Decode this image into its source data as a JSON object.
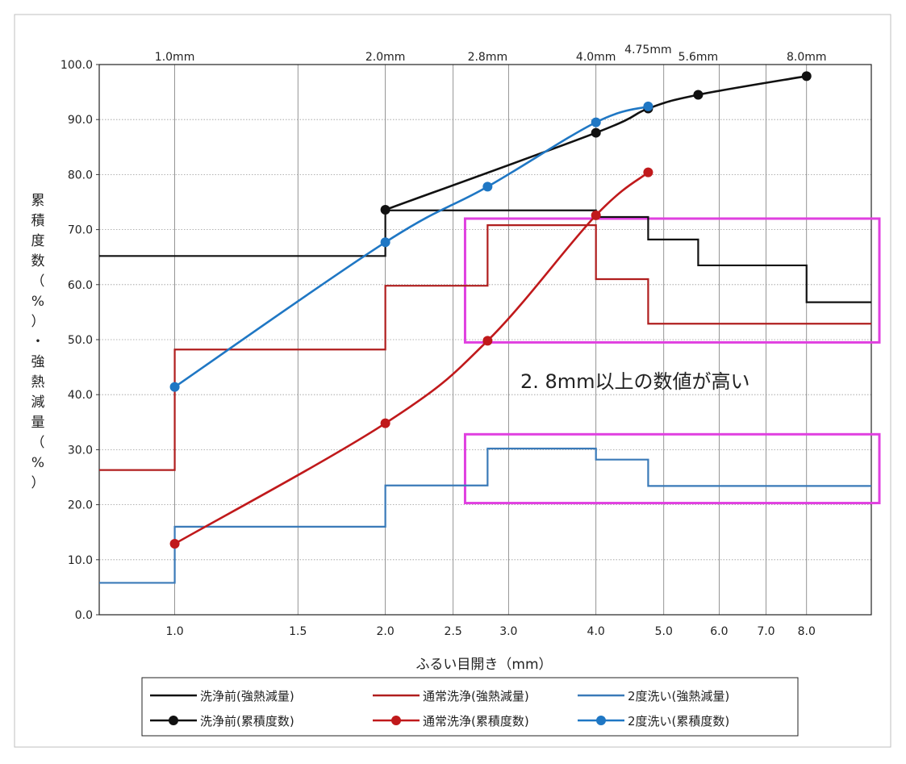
{
  "chart_data": {
    "type": "line",
    "title": "",
    "xlabel": "ふるい目開き（mm）",
    "ylabel": "累積度数（%）・強熱減量（%）",
    "x_scale": "log",
    "xlim": [
      0.78,
      9.9
    ],
    "ylim": [
      0,
      100
    ],
    "x_tick_labels": [
      "1.0",
      "1.5",
      "2.0",
      "2.5",
      "3.0",
      "4.0",
      "5.0",
      "6.0",
      "7.0",
      "8.0"
    ],
    "x_tick_values": [
      1.0,
      1.5,
      2.0,
      2.5,
      3.0,
      4.0,
      5.0,
      6.0,
      7.0,
      8.0
    ],
    "y_tick_labels": [
      "0.0",
      "10.0",
      "20.0",
      "30.0",
      "40.0",
      "50.0",
      "60.0",
      "70.0",
      "80.0",
      "90.0",
      "100.0"
    ],
    "y_tick_values": [
      0,
      10,
      20,
      30,
      40,
      50,
      60,
      70,
      80,
      90,
      100
    ],
    "top_axis_labels": [
      "1.0mm",
      "2.0mm",
      "2.8mm",
      "4.0mm",
      "4.75mm",
      "5.6mm",
      "8.0mm"
    ],
    "top_axis_values": [
      1.0,
      2.0,
      2.8,
      4.0,
      4.75,
      5.6,
      8.0
    ],
    "grid": true,
    "legend_position": "bottom",
    "series": [
      {
        "name": "洗浄前(強熱減量)",
        "kind": "step",
        "color": "#111111",
        "x": [
          0.78,
          2.0,
          4.75,
          5.6,
          8.0,
          9.9
        ],
        "y": [
          65.2,
          73.5,
          68.2,
          63.5,
          56.8,
          56.8
        ],
        "step_edges": [
          0.78,
          2.0,
          4.0,
          4.75,
          5.6,
          8.0,
          9.9
        ],
        "step_values": [
          65.2,
          73.5,
          72.3,
          68.2,
          63.5,
          56.8
        ]
      },
      {
        "name": "通常洗浄(強熱減量)",
        "kind": "step",
        "color": "#b01e1e",
        "step_edges": [
          0.78,
          1.0,
          2.0,
          2.8,
          4.0,
          4.75,
          9.9
        ],
        "step_values": [
          26.3,
          48.2,
          59.8,
          70.8,
          61.0,
          52.9
        ]
      },
      {
        "name": "2度洗い(強熱減量)",
        "kind": "step",
        "color": "#3a7ab8",
        "step_edges": [
          0.78,
          1.0,
          2.0,
          2.8,
          4.0,
          4.75,
          9.9
        ],
        "step_values": [
          5.8,
          16.0,
          23.5,
          30.2,
          28.2,
          23.4
        ]
      },
      {
        "name": "洗浄前(累積度数)",
        "kind": "line-marker",
        "color": "#111111",
        "x": [
          2.0,
          4.0,
          4.75,
          5.6,
          8.0
        ],
        "y": [
          73.6,
          87.6,
          92.0,
          94.5,
          97.9
        ]
      },
      {
        "name": "通常洗浄(累積度数)",
        "kind": "line-marker",
        "color": "#c0191b",
        "x": [
          1.0,
          2.0,
          2.8,
          4.0,
          4.75
        ],
        "y": [
          12.9,
          34.8,
          49.8,
          72.6,
          80.4
        ]
      },
      {
        "name": "2度洗い(累積度数)",
        "kind": "line-marker",
        "color": "#1f77c4",
        "x": [
          1.0,
          2.0,
          2.8,
          4.0,
          4.75
        ],
        "y": [
          41.4,
          67.7,
          77.8,
          89.5,
          92.4
        ]
      }
    ],
    "annotations": [
      {
        "text": "2. 8mm以上の数値が高い"
      }
    ],
    "highlight_boxes": [
      {
        "x_range": [
          2.6,
          9.9
        ],
        "y_range": [
          49.5,
          72.0
        ],
        "color": "#e040e0"
      },
      {
        "x_range": [
          2.6,
          9.9
        ],
        "y_range": [
          20.3,
          32.8
        ],
        "color": "#e040e0"
      }
    ]
  }
}
